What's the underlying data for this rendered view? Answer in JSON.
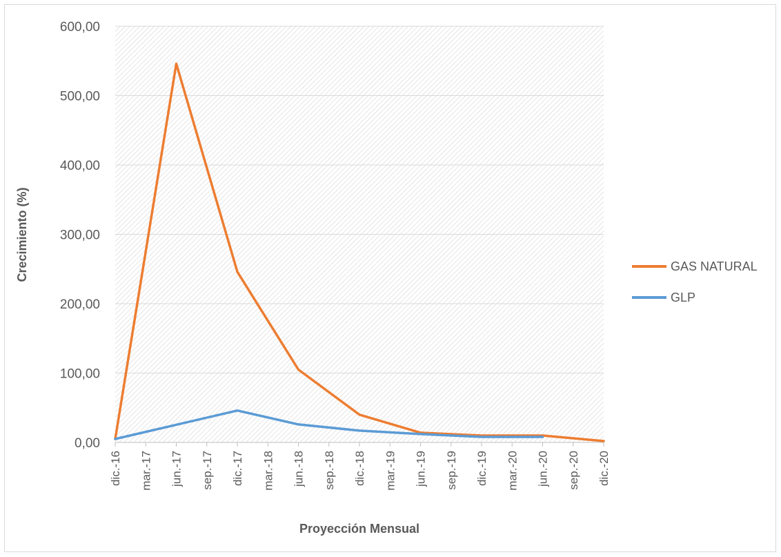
{
  "chart_data": {
    "type": "line",
    "xlabel": "Proyección Mensual",
    "ylabel": "Crecimiento (%)",
    "ylim": [
      0,
      600
    ],
    "yticks": [
      "0,00",
      "100,00",
      "200,00",
      "300,00",
      "400,00",
      "500,00",
      "600,00"
    ],
    "categories": [
      "dic.-16",
      "mar.-17",
      "jun.-17",
      "sep.-17",
      "dic.-17",
      "mar.-18",
      "jun.-18",
      "sep.-18",
      "dic.-18",
      "mar.-19",
      "jun.-19",
      "sep.-19",
      "dic.-19",
      "mar.-20",
      "jun.-20",
      "sep.-20",
      "dic.-20"
    ],
    "grid": true,
    "legend_position": "right",
    "series": [
      {
        "name": "GAS NATURAL",
        "color": "#ED7D31",
        "points": [
          {
            "x": "dic.-16",
            "y": 5
          },
          {
            "x": "jun.-17",
            "y": 546
          },
          {
            "x": "dic.-17",
            "y": 246
          },
          {
            "x": "jun.-18",
            "y": 105
          },
          {
            "x": "dic.-18",
            "y": 40
          },
          {
            "x": "jun.-19",
            "y": 14
          },
          {
            "x": "dic.-19",
            "y": 10
          },
          {
            "x": "jun.-20",
            "y": 10
          },
          {
            "x": "dic.-20",
            "y": 2
          }
        ]
      },
      {
        "name": "GLP",
        "color": "#5B9BD5",
        "points": [
          {
            "x": "dic.-16",
            "y": 5
          },
          {
            "x": "dic.-17",
            "y": 46
          },
          {
            "x": "jun.-18",
            "y": 26
          },
          {
            "x": "dic.-18",
            "y": 17
          },
          {
            "x": "jun.-19",
            "y": 12
          },
          {
            "x": "dic.-19",
            "y": 8
          },
          {
            "x": "jun.-20",
            "y": 8
          }
        ]
      }
    ]
  }
}
